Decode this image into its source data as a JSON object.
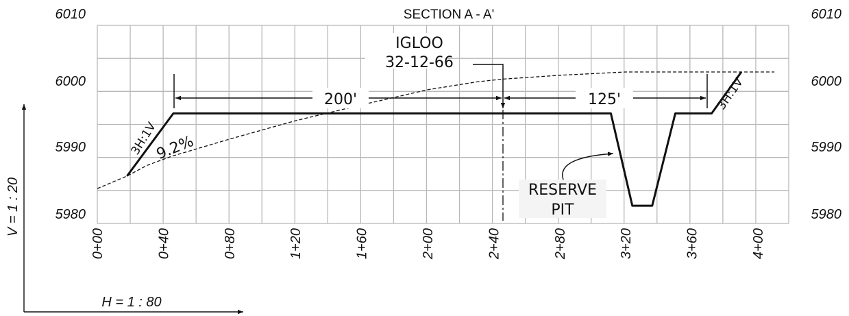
{
  "title": "SECTION A - A'",
  "elevation_labels": [
    "6010",
    "6000",
    "5990",
    "5980"
  ],
  "station_labels": [
    "0+00",
    "0+40",
    "0+80",
    "1+20",
    "1+60",
    "2+00",
    "2+40",
    "2+80",
    "3+20",
    "3+60",
    "4+00"
  ],
  "scales": {
    "vertical": "V = 1 : 20",
    "horizontal": "H = 1 : 80"
  },
  "annotations": {
    "igloo_line1": "IGLOO",
    "igloo_line2": "32-12-66",
    "dim_200": "200'",
    "dim_125": "125'",
    "slope_left": "3H:1V",
    "slope_right": "3H:1V",
    "grade": "9.2%",
    "reserve_line1": "RESERVE",
    "reserve_line2": "PIT"
  },
  "colors": {
    "line": "#111111",
    "grid": "#b8b8b8",
    "background": "#ffffff"
  },
  "chart_data": {
    "type": "line",
    "title": "SECTION A - A'",
    "xlabel": "H = 1 : 80",
    "ylabel": "V = 1 : 20",
    "xlim": [
      0,
      410
    ],
    "ylim": [
      5980,
      6010
    ],
    "x_ticks": [
      0,
      40,
      80,
      120,
      160,
      200,
      240,
      280,
      320,
      360,
      400
    ],
    "y_ticks": [
      5980,
      5990,
      6000,
      6010
    ],
    "grid": true,
    "series": [
      {
        "style": "dashed",
        "x": [
          0,
          18,
          30,
          45,
          80,
          120,
          160,
          200,
          230,
          245,
          280,
          320,
          360,
          390,
          410
        ],
        "y": [
          5985.3,
          5987.2,
          5988.8,
          5990.2,
          5992.8,
          5995.6,
          5998.0,
          6000.3,
          6001.5,
          6001.9,
          6002.5,
          6003.0,
          6003.0,
          6003.0,
          6003.0
        ]
      },
      {
        "style": "solid",
        "x": [
          18,
          46,
          311,
          324,
          336,
          350,
          372,
          390
        ],
        "y": [
          5987.2,
          5996.7,
          5996.7,
          5982.7,
          5982.7,
          5996.7,
          5996.7,
          6003.0
        ]
      }
    ]
  }
}
